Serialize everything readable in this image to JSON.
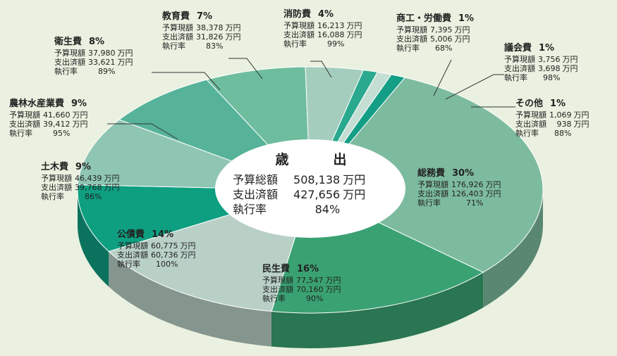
{
  "chart_data": {
    "type": "pie",
    "title": "歳　出",
    "summary": [
      {
        "label": "予算総額",
        "value": "508,138",
        "unit": "万円"
      },
      {
        "label": "支出済額",
        "value": "427,656",
        "unit": "万円"
      },
      {
        "label": "執行率",
        "value": "84%",
        "unit": ""
      }
    ],
    "row_labels": {
      "budget": "予算現額",
      "spent": "支出済額",
      "rate": "執行率"
    },
    "unit": "万円",
    "slices": [
      {
        "name": "総務費",
        "percent": 30,
        "budget": "176,926",
        "spent": "126,403",
        "rate": "71%",
        "color": "#7dbb9f"
      },
      {
        "name": "民生費",
        "percent": 16,
        "budget": "77,547",
        "spent": "70,160",
        "rate": "90%",
        "color": "#3aa272"
      },
      {
        "name": "公債費",
        "percent": 14,
        "budget": "60,775",
        "spent": "60,736",
        "rate": "100%",
        "color": "#b9d0c7"
      },
      {
        "name": "土木費",
        "percent": 9,
        "budget": "46,439",
        "spent": "39,768",
        "rate": "86%",
        "color": "#0e9f81"
      },
      {
        "name": "農林水産業費",
        "percent": 9,
        "budget": "41,660",
        "spent": "39,412",
        "rate": "95%",
        "color": "#8fc5b3"
      },
      {
        "name": "衛生費",
        "percent": 8,
        "budget": "37,980",
        "spent": "33,621",
        "rate": "89%",
        "color": "#56b39a"
      },
      {
        "name": "教育費",
        "percent": 7,
        "budget": "38,378",
        "spent": "31,826",
        "rate": "83%",
        "color": "#6dbd9e"
      },
      {
        "name": "消防費",
        "percent": 4,
        "budget": "16,213",
        "spent": "16,088",
        "rate": "99%",
        "color": "#a4cdbe"
      },
      {
        "name": "商工・労働費",
        "percent": 1,
        "budget": "7,395",
        "spent": "5,006",
        "rate": "68%",
        "color": "#2aa98f"
      },
      {
        "name": "議会費",
        "percent": 1,
        "budget": "3,756",
        "spent": "3,698",
        "rate": "98%",
        "color": "#c5ded4"
      },
      {
        "name": "その他",
        "percent": 1,
        "budget": "1,069",
        "spent": "938",
        "rate": "88%",
        "color": "#149e86"
      }
    ]
  },
  "colors": {
    "background": "#eaf1e0",
    "center": "#ffffff",
    "leader": "#333333"
  }
}
